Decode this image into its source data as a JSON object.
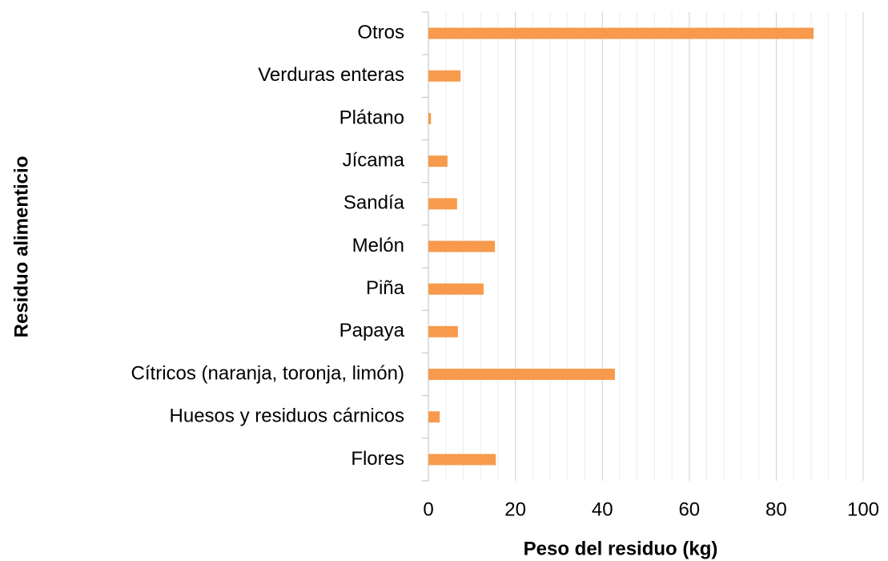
{
  "chart_data": {
    "type": "bar",
    "orientation": "horizontal",
    "x_label": "Peso del residuo (kg)",
    "y_label": "Residuo alimenticio",
    "categories": [
      "Otros",
      "Verduras enteras",
      "Plátano",
      "Jícama",
      "Sandía",
      "Melón",
      "Piña",
      "Papaya",
      "Cítricos (naranja, toronja, limón)",
      "Huesos y residuos cárnicos",
      "Flores"
    ],
    "values": [
      88.6,
      7.4,
      0.6,
      4.4,
      6.6,
      15.3,
      12.7,
      6.8,
      42.9,
      2.6,
      15.5
    ],
    "color": "#f79a4c",
    "xlim": [
      0,
      100
    ],
    "xticks": [
      0,
      20,
      40,
      60,
      80,
      100
    ],
    "minor_xticks": [
      4,
      8,
      12,
      16,
      24,
      28,
      32,
      36,
      44,
      48,
      52,
      56,
      64,
      68,
      72,
      76,
      84,
      88,
      92,
      96
    ],
    "grid": true
  }
}
